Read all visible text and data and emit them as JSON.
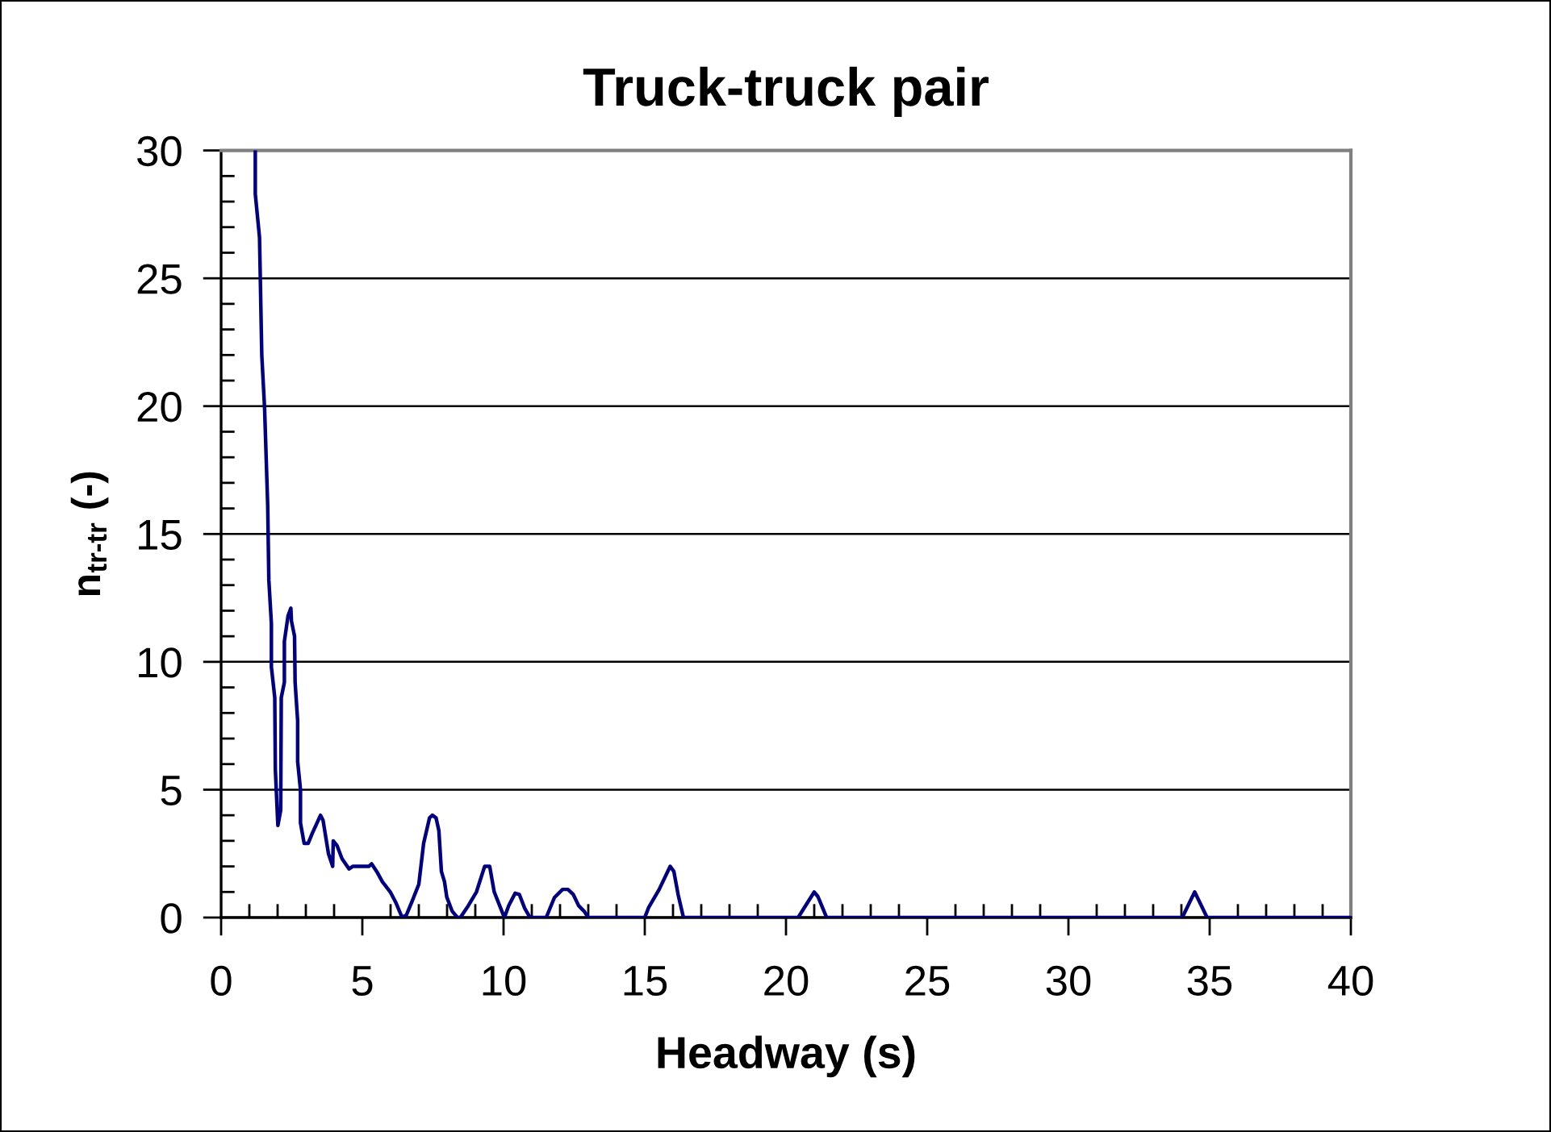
{
  "chart_data": {
    "type": "line",
    "title": "Truck-truck pair",
    "xlabel": "Headway (s)",
    "ylabel": "n$_{tr-tr}$ (-)",
    "x": [
      1.21,
      1.21,
      1.36,
      1.44,
      1.54,
      1.65,
      1.69,
      1.78,
      1.78,
      1.9,
      1.92,
      2.01,
      2.11,
      2.13,
      2.24,
      2.24,
      2.37,
      2.47,
      2.49,
      2.6,
      2.62,
      2.71,
      2.71,
      2.81,
      2.81,
      2.94,
      3.08,
      3.23,
      3.52,
      3.61,
      3.8,
      3.95,
      3.97,
      4.11,
      4.28,
      4.53,
      4.66,
      5.23,
      5.33,
      5.51,
      5.71,
      5.99,
      6.18,
      6.41,
      6.56,
      6.75,
      7.0,
      7.17,
      7.38,
      7.48,
      7.61,
      7.71,
      7.8,
      7.91,
      7.99,
      8.18,
      8.37,
      8.47,
      8.75,
      9.04,
      9.33,
      9.51,
      9.67,
      9.9,
      10.03,
      10.18,
      10.41,
      10.56,
      10.75,
      10.94,
      11.51,
      11.8,
      12.09,
      12.28,
      12.47,
      12.66,
      12.85,
      13.0,
      15.0,
      15.14,
      15.51,
      15.9,
      16.03,
      16.18,
      16.37,
      20.43,
      21.0,
      21.13,
      21.44,
      34.03,
      34.47,
      34.91,
      40.0
    ],
    "values": [
      30,
      28.3,
      26.6,
      22.0,
      19.9,
      16.1,
      13.2,
      11.5,
      9.8,
      8.6,
      5.8,
      3.6,
      4.2,
      8.6,
      9.2,
      10.8,
      11.8,
      12.1,
      11.6,
      11.0,
      9.2,
      7.7,
      6.1,
      5.0,
      3.7,
      2.9,
      2.9,
      3.3,
      4.0,
      3.8,
      2.5,
      2.0,
      3.0,
      2.8,
      2.3,
      1.9,
      2.0,
      2.0,
      2.1,
      1.8,
      1.4,
      1.0,
      0.6,
      0,
      0.1,
      0.6,
      1.3,
      2.9,
      3.9,
      4.0,
      3.9,
      3.4,
      1.8,
      1.4,
      0.8,
      0.25,
      0,
      0,
      0.46,
      1.0,
      2.0,
      2.0,
      1.0,
      0.36,
      0,
      0.46,
      0.95,
      0.9,
      0.36,
      0,
      0,
      0.78,
      1.1,
      1.1,
      0.9,
      0.46,
      0.25,
      0,
      0,
      0.4,
      1.1,
      2.0,
      1.8,
      0.9,
      0,
      0,
      1.0,
      0.82,
      0,
      0,
      1.0,
      0,
      0
    ],
    "color": "#000080",
    "xlim": [
      0,
      40
    ],
    "ylim": [
      0,
      30
    ],
    "xticks": [
      0,
      {
        "value": 1,
        "label": null
      },
      {
        "value": 2,
        "label": null
      },
      {
        "value": 3,
        "label": null
      },
      {
        "value": 4,
        "label": null
      },
      5,
      {
        "value": 6,
        "label": null
      },
      {
        "value": 7,
        "label": null
      },
      {
        "value": 8,
        "label": null
      },
      {
        "value": 9,
        "label": null
      },
      10,
      {
        "value": 11,
        "label": null
      },
      {
        "value": 12,
        "label": null
      },
      {
        "value": 13,
        "label": null
      },
      {
        "value": 14,
        "label": null
      },
      15,
      {
        "value": 16,
        "label": null
      },
      {
        "value": 17,
        "label": null
      },
      {
        "value": 18,
        "label": null
      },
      {
        "value": 19,
        "label": null
      },
      20,
      {
        "value": 21,
        "label": null
      },
      {
        "value": 22,
        "label": null
      },
      {
        "value": 23,
        "label": null
      },
      {
        "value": 24,
        "label": null
      },
      25,
      {
        "value": 26,
        "label": null
      },
      {
        "value": 27,
        "label": null
      },
      {
        "value": 28,
        "label": null
      },
      {
        "value": 29,
        "label": null
      },
      30,
      {
        "value": 31,
        "label": null
      },
      {
        "value": 32,
        "label": null
      },
      {
        "value": 33,
        "label": null
      },
      {
        "value": 34,
        "label": null
      },
      35,
      {
        "value": 36,
        "label": null
      },
      {
        "value": 37,
        "label": null
      },
      {
        "value": 38,
        "label": null
      },
      {
        "value": 39,
        "label": null
      },
      40
    ],
    "yticks": [
      0,
      {
        "value": 1,
        "label": null
      },
      {
        "value": 2,
        "label": null
      },
      {
        "value": 3,
        "label": null
      },
      {
        "value": 4,
        "label": null
      },
      5,
      {
        "value": 6,
        "label": null
      },
      {
        "value": 7,
        "label": null
      },
      {
        "value": 8,
        "label": null
      },
      {
        "value": 9,
        "label": null
      },
      10,
      {
        "value": 11,
        "label": null
      },
      {
        "value": 12,
        "label": null
      },
      {
        "value": 13,
        "label": null
      },
      {
        "value": 14,
        "label": null
      },
      15,
      {
        "value": 16,
        "label": null
      },
      {
        "value": 17,
        "label": null
      },
      {
        "value": 18,
        "label": null
      },
      {
        "value": 19,
        "label": null
      },
      20,
      {
        "value": 21,
        "label": null
      },
      {
        "value": 22,
        "label": null
      },
      {
        "value": 23,
        "label": null
      },
      {
        "value": 24,
        "label": null
      },
      25,
      {
        "value": 26,
        "label": null
      },
      {
        "value": 27,
        "label": null
      },
      {
        "value": 28,
        "label": null
      },
      {
        "value": 29,
        "label": null
      },
      30
    ],
    "grid": "y"
  }
}
